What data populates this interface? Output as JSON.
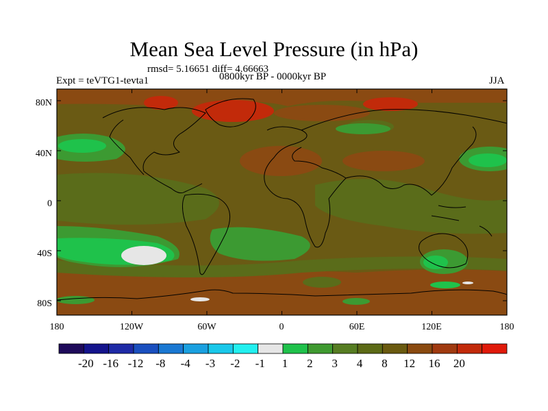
{
  "title": "Mean Sea Level Pressure (in hPa)",
  "stats": "rmsd= 5.16651 diff= 4.66663",
  "experiment": "Expt = teVTG1-tevta1",
  "period": "0800kyr BP - 0000kyr BP",
  "season": "JJA",
  "lat_labels": [
    "80N",
    "40N",
    "0",
    "40S",
    "80S"
  ],
  "lon_labels": [
    "180",
    "120W",
    "60W",
    "0",
    "60E",
    "120E",
    "180"
  ],
  "colorbar": {
    "colors": [
      "#1e0a5a",
      "#14148c",
      "#1e2aa6",
      "#1a4fbf",
      "#1a78d2",
      "#1aa0e0",
      "#19c8ea",
      "#22f0f0",
      "#e6e6e6",
      "#1fc24b",
      "#3f9a30",
      "#567d22",
      "#5c6a16",
      "#6a5a10",
      "#8a4a10",
      "#a03a10",
      "#c22a0a",
      "#e01a0a"
    ],
    "labels": [
      "-20",
      "-16",
      "-12",
      "-8",
      "-4",
      "-3",
      "-2",
      "-1",
      "1",
      "2",
      "3",
      "4",
      "8",
      "12",
      "16",
      "20"
    ]
  },
  "colors": {
    "bg": "#6a5a14",
    "olive": "#5a6c1a",
    "green": "#3c9a32",
    "bright_green": "#1fc24b",
    "gray": "#e6e6e6",
    "rust": "#8a4a12",
    "red": "#c22a0a"
  }
}
